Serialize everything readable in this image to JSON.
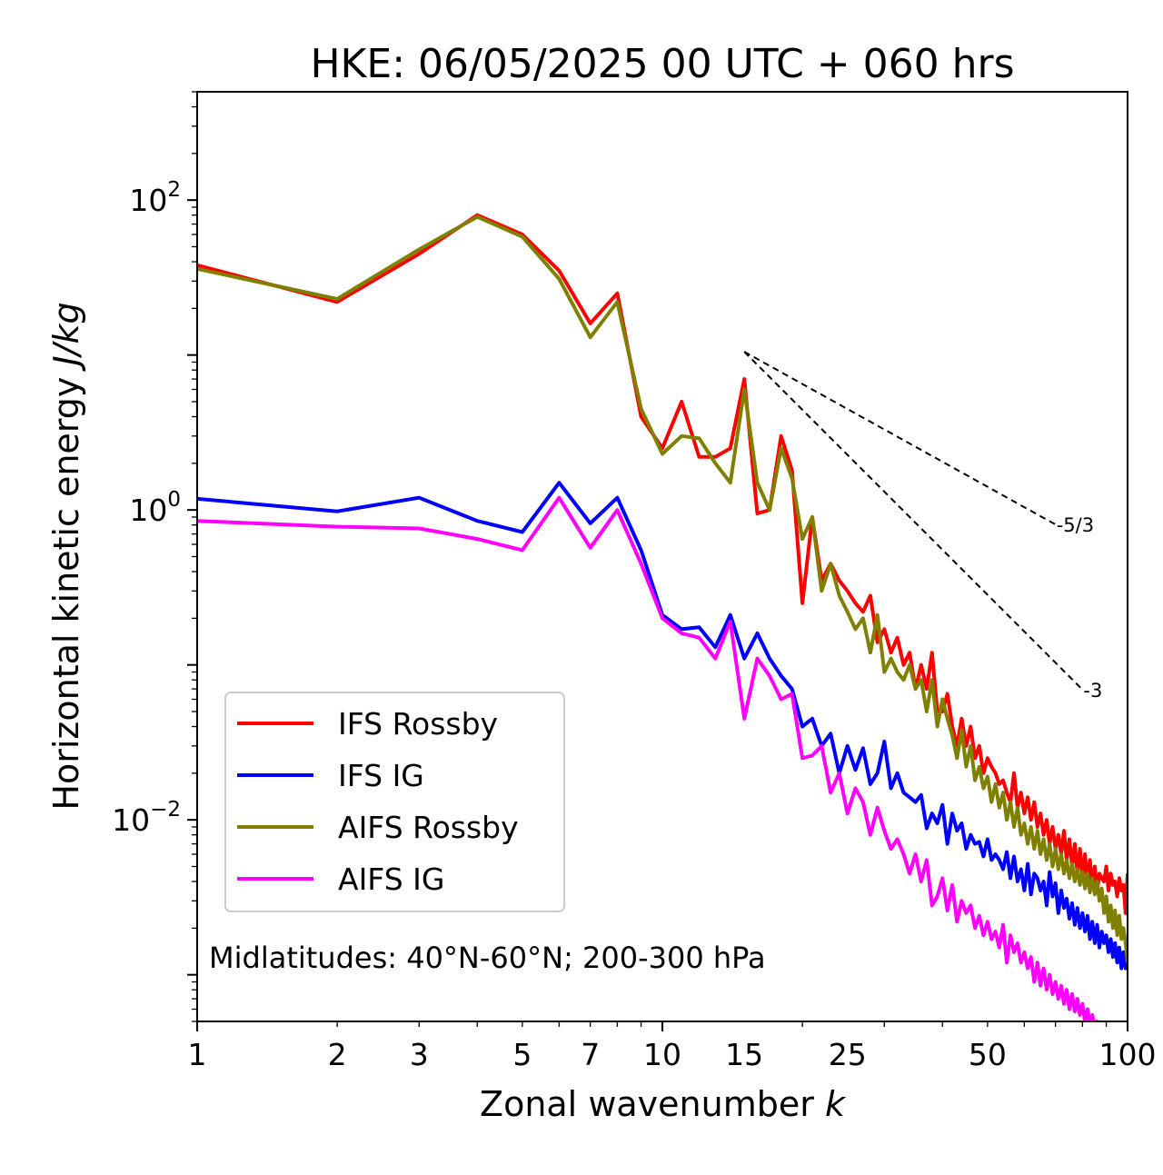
{
  "chart_data": {
    "type": "line",
    "title": "HKE: 06/05/2025 00 UTC + 060 hrs",
    "xlabel": "Zonal wavenumber",
    "xlabel_symbol": "k",
    "ylabel": "Horizontal kinetic energy",
    "ylabel_units": "J/kg",
    "xscale": "log",
    "yscale": "log",
    "xlim": [
      1,
      100
    ],
    "ylim": [
      0.0005,
      500
    ],
    "xticks": [
      {
        "value": 1,
        "label": "1"
      },
      {
        "value": 2,
        "label": "2"
      },
      {
        "value": 3,
        "label": "3"
      },
      {
        "value": 5,
        "label": "5"
      },
      {
        "value": 7,
        "label": "7"
      },
      {
        "value": 10,
        "label": "10"
      },
      {
        "value": 15,
        "label": "15"
      },
      {
        "value": 25,
        "label": "25"
      },
      {
        "value": 50,
        "label": "50"
      },
      {
        "value": 100,
        "label": "100"
      }
    ],
    "yticks": [
      {
        "value": 100,
        "base": "10",
        "exp": "2"
      },
      {
        "value": 1,
        "base": "10",
        "exp": "0"
      },
      {
        "value": 0.01,
        "base": "10",
        "exp": "−2"
      }
    ],
    "annotation": "Midlatitudes: 40°N-60°N; 200-300 hPa",
    "legend_position": "lower-left",
    "reference_lines": [
      {
        "label": "-5/3",
        "slope": -1.6667,
        "x": [
          15,
          70
        ],
        "y_start": 10.5
      },
      {
        "label": "-3",
        "slope": -3,
        "x": [
          15,
          80
        ],
        "y_start": 10.5
      }
    ],
    "series": [
      {
        "name": "IFS Rossby",
        "color": "#ff0000",
        "x": [
          1,
          2,
          3,
          4,
          5,
          6,
          7,
          8,
          9,
          10,
          11,
          12,
          13,
          14,
          15,
          16,
          17,
          18,
          19,
          20,
          21,
          22,
          23,
          24,
          25,
          26,
          27,
          28,
          29,
          30,
          31,
          32,
          33,
          34,
          35,
          36,
          37,
          38,
          39,
          40,
          41,
          42,
          43,
          44,
          45,
          46,
          47,
          48,
          49,
          50,
          51,
          52,
          53,
          54,
          55,
          56,
          57,
          58,
          59,
          60,
          61,
          62,
          63,
          64,
          65,
          66,
          67,
          68,
          69,
          70,
          71,
          72,
          73,
          74,
          75,
          76,
          77,
          78,
          79,
          80,
          81,
          82,
          83,
          84,
          85,
          86,
          87,
          88,
          89,
          90,
          91,
          92,
          93,
          94,
          95,
          96,
          97,
          98,
          99,
          100
        ],
        "y": [
          38,
          22,
          45,
          80,
          60,
          35,
          16,
          25,
          4.0,
          2.5,
          5.0,
          2.2,
          2.2,
          2.5,
          7.0,
          0.95,
          1.0,
          3.0,
          1.8,
          0.25,
          0.9,
          0.35,
          0.45,
          0.35,
          0.3,
          0.25,
          0.22,
          0.28,
          0.14,
          0.17,
          0.12,
          0.15,
          0.1,
          0.12,
          0.07,
          0.1,
          0.07,
          0.12,
          0.05,
          0.05,
          0.065,
          0.04,
          0.03,
          0.045,
          0.03,
          0.04,
          0.025,
          0.03,
          0.02,
          0.025,
          0.022,
          0.02,
          0.017,
          0.018,
          0.015,
          0.013,
          0.02,
          0.012,
          0.015,
          0.011,
          0.014,
          0.01,
          0.013,
          0.009,
          0.011,
          0.008,
          0.01,
          0.007,
          0.009,
          0.0065,
          0.008,
          0.006,
          0.0085,
          0.0055,
          0.0075,
          0.005,
          0.007,
          0.0045,
          0.0065,
          0.0042,
          0.006,
          0.004,
          0.0055,
          0.0038,
          0.005,
          0.0035,
          0.0045,
          0.0042,
          0.004,
          0.005,
          0.0035,
          0.0045,
          0.0038,
          0.004,
          0.0032,
          0.0042,
          0.0035,
          0.0038,
          0.0025,
          0.0045
        ]
      },
      {
        "name": "IFS IG",
        "color": "#0000ff",
        "x": [
          1,
          2,
          3,
          4,
          5,
          6,
          7,
          8,
          9,
          10,
          11,
          12,
          13,
          14,
          15,
          16,
          17,
          18,
          19,
          20,
          21,
          22,
          23,
          24,
          25,
          26,
          27,
          28,
          29,
          30,
          31,
          32,
          33,
          34,
          35,
          36,
          37,
          38,
          39,
          40,
          41,
          42,
          43,
          44,
          45,
          46,
          47,
          48,
          49,
          50,
          51,
          52,
          53,
          54,
          55,
          56,
          57,
          58,
          59,
          60,
          61,
          62,
          63,
          64,
          65,
          66,
          67,
          68,
          69,
          70,
          71,
          72,
          73,
          74,
          75,
          76,
          77,
          78,
          79,
          80,
          81,
          82,
          83,
          84,
          85,
          86,
          87,
          88,
          89,
          90,
          91,
          92,
          93,
          94,
          95,
          96,
          97,
          98,
          99,
          100
        ],
        "y": [
          1.18,
          0.98,
          1.2,
          0.85,
          0.72,
          1.5,
          0.82,
          1.2,
          0.55,
          0.21,
          0.17,
          0.175,
          0.13,
          0.21,
          0.11,
          0.16,
          0.11,
          0.085,
          0.07,
          0.04,
          0.045,
          0.03,
          0.036,
          0.02,
          0.03,
          0.021,
          0.029,
          0.017,
          0.02,
          0.032,
          0.016,
          0.02,
          0.015,
          0.014,
          0.013,
          0.0145,
          0.0088,
          0.011,
          0.0095,
          0.0125,
          0.007,
          0.011,
          0.0085,
          0.0095,
          0.0065,
          0.008,
          0.007,
          0.0072,
          0.0058,
          0.0075,
          0.0055,
          0.006,
          0.0055,
          0.0048,
          0.0062,
          0.0042,
          0.0058,
          0.004,
          0.0048,
          0.0035,
          0.0052,
          0.0033,
          0.0045,
          0.0042,
          0.0035,
          0.004,
          0.0028,
          0.0046,
          0.0032,
          0.0039,
          0.0025,
          0.0035,
          0.0027,
          0.0031,
          0.0023,
          0.0029,
          0.0021,
          0.0027,
          0.002,
          0.0025,
          0.0019,
          0.0024,
          0.0017,
          0.0022,
          0.0016,
          0.0021,
          0.0015,
          0.0019,
          0.0016,
          0.0018,
          0.0014,
          0.0017,
          0.0013,
          0.0016,
          0.0012,
          0.0015,
          0.0011,
          0.0014,
          0.0011,
          0.0013
        ]
      },
      {
        "name": "AIFS Rossby",
        "color": "#808000",
        "x": [
          1,
          2,
          3,
          4,
          5,
          6,
          7,
          8,
          9,
          10,
          11,
          12,
          13,
          14,
          15,
          16,
          17,
          18,
          19,
          20,
          21,
          22,
          23,
          24,
          25,
          26,
          27,
          28,
          29,
          30,
          31,
          32,
          33,
          34,
          35,
          36,
          37,
          38,
          39,
          40,
          41,
          42,
          43,
          44,
          45,
          46,
          47,
          48,
          49,
          50,
          51,
          52,
          53,
          54,
          55,
          56,
          57,
          58,
          59,
          60,
          61,
          62,
          63,
          64,
          65,
          66,
          67,
          68,
          69,
          70,
          71,
          72,
          73,
          74,
          75,
          76,
          77,
          78,
          79,
          80,
          81,
          82,
          83,
          84,
          85,
          86,
          87,
          88,
          89,
          90,
          91,
          92,
          93,
          94,
          95,
          96,
          97,
          98,
          99,
          100
        ],
        "y": [
          36,
          23,
          48,
          78,
          58,
          31,
          13,
          22,
          4.5,
          2.3,
          3.0,
          2.9,
          2.0,
          1.5,
          6.0,
          1.5,
          1.0,
          2.5,
          1.6,
          0.65,
          0.9,
          0.3,
          0.45,
          0.28,
          0.22,
          0.17,
          0.2,
          0.12,
          0.21,
          0.09,
          0.11,
          0.09,
          0.08,
          0.1,
          0.07,
          0.08,
          0.05,
          0.08,
          0.04,
          0.06,
          0.045,
          0.035,
          0.025,
          0.038,
          0.022,
          0.03,
          0.018,
          0.022,
          0.016,
          0.019,
          0.013,
          0.017,
          0.012,
          0.015,
          0.01,
          0.013,
          0.009,
          0.012,
          0.008,
          0.0095,
          0.007,
          0.009,
          0.0065,
          0.0085,
          0.006,
          0.0075,
          0.0055,
          0.007,
          0.005,
          0.0065,
          0.0048,
          0.006,
          0.0045,
          0.0055,
          0.0042,
          0.0052,
          0.004,
          0.0048,
          0.0038,
          0.0046,
          0.0036,
          0.0045,
          0.0034,
          0.0042,
          0.0033,
          0.004,
          0.003,
          0.0036,
          0.0025,
          0.0032,
          0.0022,
          0.0028,
          0.002,
          0.0026,
          0.0018,
          0.0024,
          0.0017,
          0.002,
          0.0016,
          0.0012
        ]
      },
      {
        "name": "AIFS IG",
        "color": "#ff00ff",
        "x": [
          1,
          2,
          3,
          4,
          5,
          6,
          7,
          8,
          9,
          10,
          11,
          12,
          13,
          14,
          15,
          16,
          17,
          18,
          19,
          20,
          21,
          22,
          23,
          24,
          25,
          26,
          27,
          28,
          29,
          30,
          31,
          32,
          33,
          34,
          35,
          36,
          37,
          38,
          39,
          40,
          41,
          42,
          43,
          44,
          45,
          46,
          47,
          48,
          49,
          50,
          51,
          52,
          53,
          54,
          55,
          56,
          57,
          58,
          59,
          60,
          61,
          62,
          63,
          64,
          65,
          66,
          67,
          68,
          69,
          70,
          71,
          72,
          73,
          74,
          75,
          76,
          77,
          78,
          79,
          80,
          81,
          82,
          83,
          84,
          85,
          86,
          87,
          88,
          89,
          90,
          91,
          92,
          93,
          94,
          95,
          96,
          97,
          98,
          99,
          100
        ],
        "y": [
          0.85,
          0.78,
          0.76,
          0.65,
          0.55,
          1.2,
          0.57,
          1.0,
          0.45,
          0.2,
          0.16,
          0.15,
          0.11,
          0.19,
          0.045,
          0.11,
          0.085,
          0.06,
          0.065,
          0.025,
          0.026,
          0.03,
          0.015,
          0.02,
          0.011,
          0.016,
          0.013,
          0.008,
          0.012,
          0.0085,
          0.0065,
          0.0075,
          0.006,
          0.0045,
          0.006,
          0.004,
          0.0055,
          0.0028,
          0.0032,
          0.0042,
          0.0026,
          0.0038,
          0.0022,
          0.003,
          0.0025,
          0.0028,
          0.002,
          0.0024,
          0.0018,
          0.0022,
          0.0017,
          0.0019,
          0.0015,
          0.0021,
          0.0012,
          0.0018,
          0.0014,
          0.0016,
          0.0012,
          0.0014,
          0.0011,
          0.0013,
          0.0009,
          0.0012,
          0.00085,
          0.0011,
          0.0008,
          0.001,
          0.00075,
          0.0009,
          0.0007,
          0.00085,
          0.00065,
          0.0008,
          0.0006,
          0.00075,
          0.00058,
          0.0007,
          0.00055,
          0.00065,
          0.0005,
          0.0006,
          0.00048,
          0.00055,
          0.00045,
          0.0005,
          0.00042,
          0.00048,
          0.0004,
          0.00045,
          0.00038,
          0.00042,
          0.00036,
          0.0004,
          0.00035,
          0.00038,
          0.00034,
          0.00036,
          0.00033,
          0.00035
        ]
      }
    ]
  }
}
